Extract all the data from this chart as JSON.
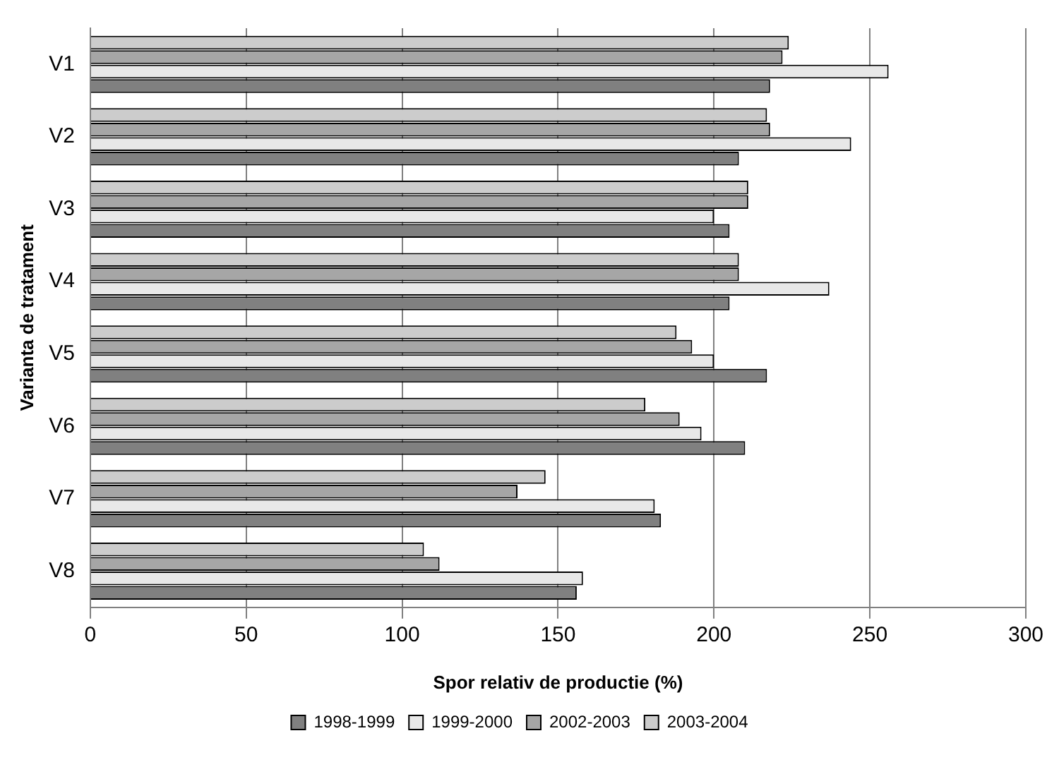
{
  "chart_data": {
    "type": "bar",
    "orientation": "horizontal",
    "xlabel": "Spor relativ de productie (%)",
    "ylabel": "Varianta de tratament",
    "categories": [
      "V1",
      "V2",
      "V3",
      "V4",
      "V5",
      "V6",
      "V7",
      "V8"
    ],
    "series": [
      {
        "name": "1998-1999",
        "color": "#808080",
        "values": [
          218,
          208,
          205,
          205,
          217,
          210,
          183,
          156
        ]
      },
      {
        "name": "1999-2000",
        "color": "#e8e8e8",
        "values": [
          256,
          244,
          200,
          237,
          200,
          196,
          181,
          158
        ]
      },
      {
        "name": "2002-2003",
        "color": "#a6a6a6",
        "values": [
          222,
          218,
          211,
          208,
          193,
          189,
          137,
          112
        ]
      },
      {
        "name": "2003-2004",
        "color": "#cccccc",
        "values": [
          224,
          217,
          211,
          208,
          188,
          178,
          146,
          107
        ]
      }
    ],
    "xlim": [
      0,
      300
    ],
    "xticks": [
      0,
      50,
      100,
      150,
      200,
      250,
      300
    ],
    "grid": "x",
    "legend": "bottom"
  }
}
